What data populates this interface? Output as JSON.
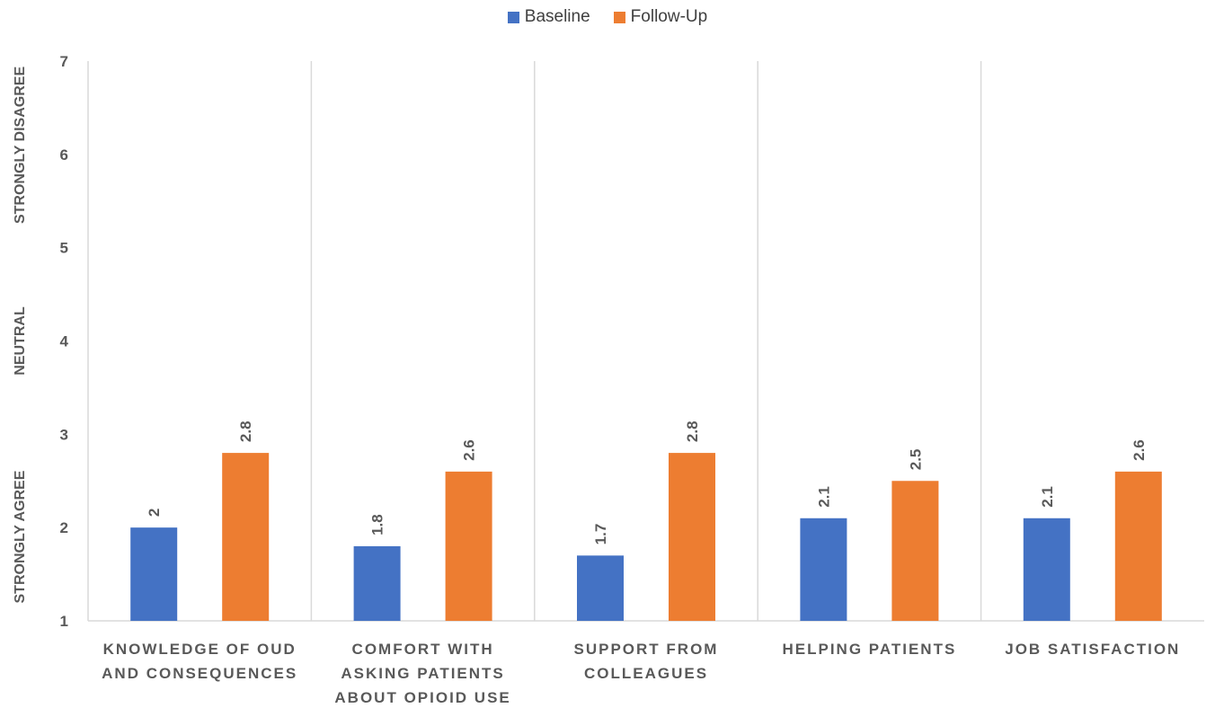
{
  "chart_data": {
    "type": "bar",
    "categories": [
      [
        "KNOWLEDGE OF OUD",
        "AND CONSEQUENCES"
      ],
      [
        "COMFORT WITH",
        "ASKING PATIENTS",
        "ABOUT OPIOID USE"
      ],
      [
        "SUPPORT FROM",
        "COLLEAGUES"
      ],
      [
        "HELPING PATIENTS"
      ],
      [
        "JOB SATISFACTION"
      ]
    ],
    "series": [
      {
        "name": "Baseline",
        "color": "#4472C4",
        "values": [
          2,
          1.8,
          1.7,
          2.1,
          2.1
        ]
      },
      {
        "name": "Follow-Up",
        "color": "#ED7D31",
        "values": [
          2.8,
          2.6,
          2.8,
          2.5,
          2.6
        ]
      }
    ],
    "ylim": [
      1,
      7
    ],
    "yticks": [
      1,
      2,
      3,
      4,
      5,
      6,
      7
    ],
    "y_side_labels": [
      {
        "text": "STRONGLY DISAGREE",
        "y": 6.1
      },
      {
        "text": "NEUTRAL",
        "y": 4
      },
      {
        "text": "STRONGLY AGREE",
        "y": 1.9
      }
    ],
    "legend_position": "top-center",
    "grid": "vertical category separators"
  }
}
